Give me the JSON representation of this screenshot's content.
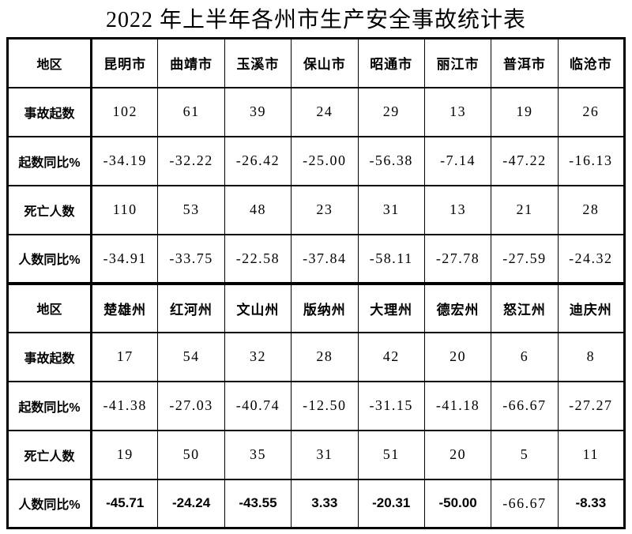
{
  "page": {
    "title": "2022 年上半年各州市生产安全事故统计表",
    "background_color": "#ffffff",
    "text_color": "#000000",
    "border_color": "#000000"
  },
  "table": {
    "sections": [
      {
        "region_label": "地区",
        "regions": [
          "昆明市",
          "曲靖市",
          "玉溪市",
          "保山市",
          "昭通市",
          "丽江市",
          "普洱市",
          "临沧市"
        ],
        "rows": [
          {
            "label": "事故起数",
            "values": [
              "102",
              "61",
              "39",
              "24",
              "29",
              "13",
              "19",
              "26"
            ]
          },
          {
            "label": "起数同比%",
            "values": [
              "-34.19",
              "-32.22",
              "-26.42",
              "-25.00",
              "-56.38",
              "-7.14",
              "-47.22",
              "-16.13"
            ]
          },
          {
            "label": "死亡人数",
            "values": [
              "110",
              "53",
              "48",
              "23",
              "31",
              "13",
              "21",
              "28"
            ]
          },
          {
            "label": "人数同比%",
            "values": [
              "-34.91",
              "-33.75",
              "-22.58",
              "-37.84",
              "-58.11",
              "-27.78",
              "-27.59",
              "-24.32"
            ]
          }
        ]
      },
      {
        "region_label": "地区",
        "regions": [
          "楚雄州",
          "红河州",
          "文山州",
          "版纳州",
          "大理州",
          "德宏州",
          "怒江州",
          "迪庆州"
        ],
        "rows": [
          {
            "label": "事故起数",
            "values": [
              "17",
              "54",
              "32",
              "28",
              "42",
              "20",
              "6",
              "8"
            ]
          },
          {
            "label": "起数同比%",
            "values": [
              "-41.38",
              "-27.03",
              "-40.74",
              "-12.50",
              "-31.15",
              "-41.18",
              "-66.67",
              "-27.27"
            ]
          },
          {
            "label": "死亡人数",
            "values": [
              "19",
              "50",
              "35",
              "31",
              "51",
              "20",
              "5",
              "11"
            ]
          },
          {
            "label": "人数同比%",
            "values": [
              "-45.71",
              "-24.24",
              "-43.55",
              "3.33",
              "-20.31",
              "-50.00",
              "-66.67",
              "-8.33"
            ],
            "emphasis": true,
            "regular_indices": [
              6
            ]
          }
        ]
      }
    ]
  }
}
